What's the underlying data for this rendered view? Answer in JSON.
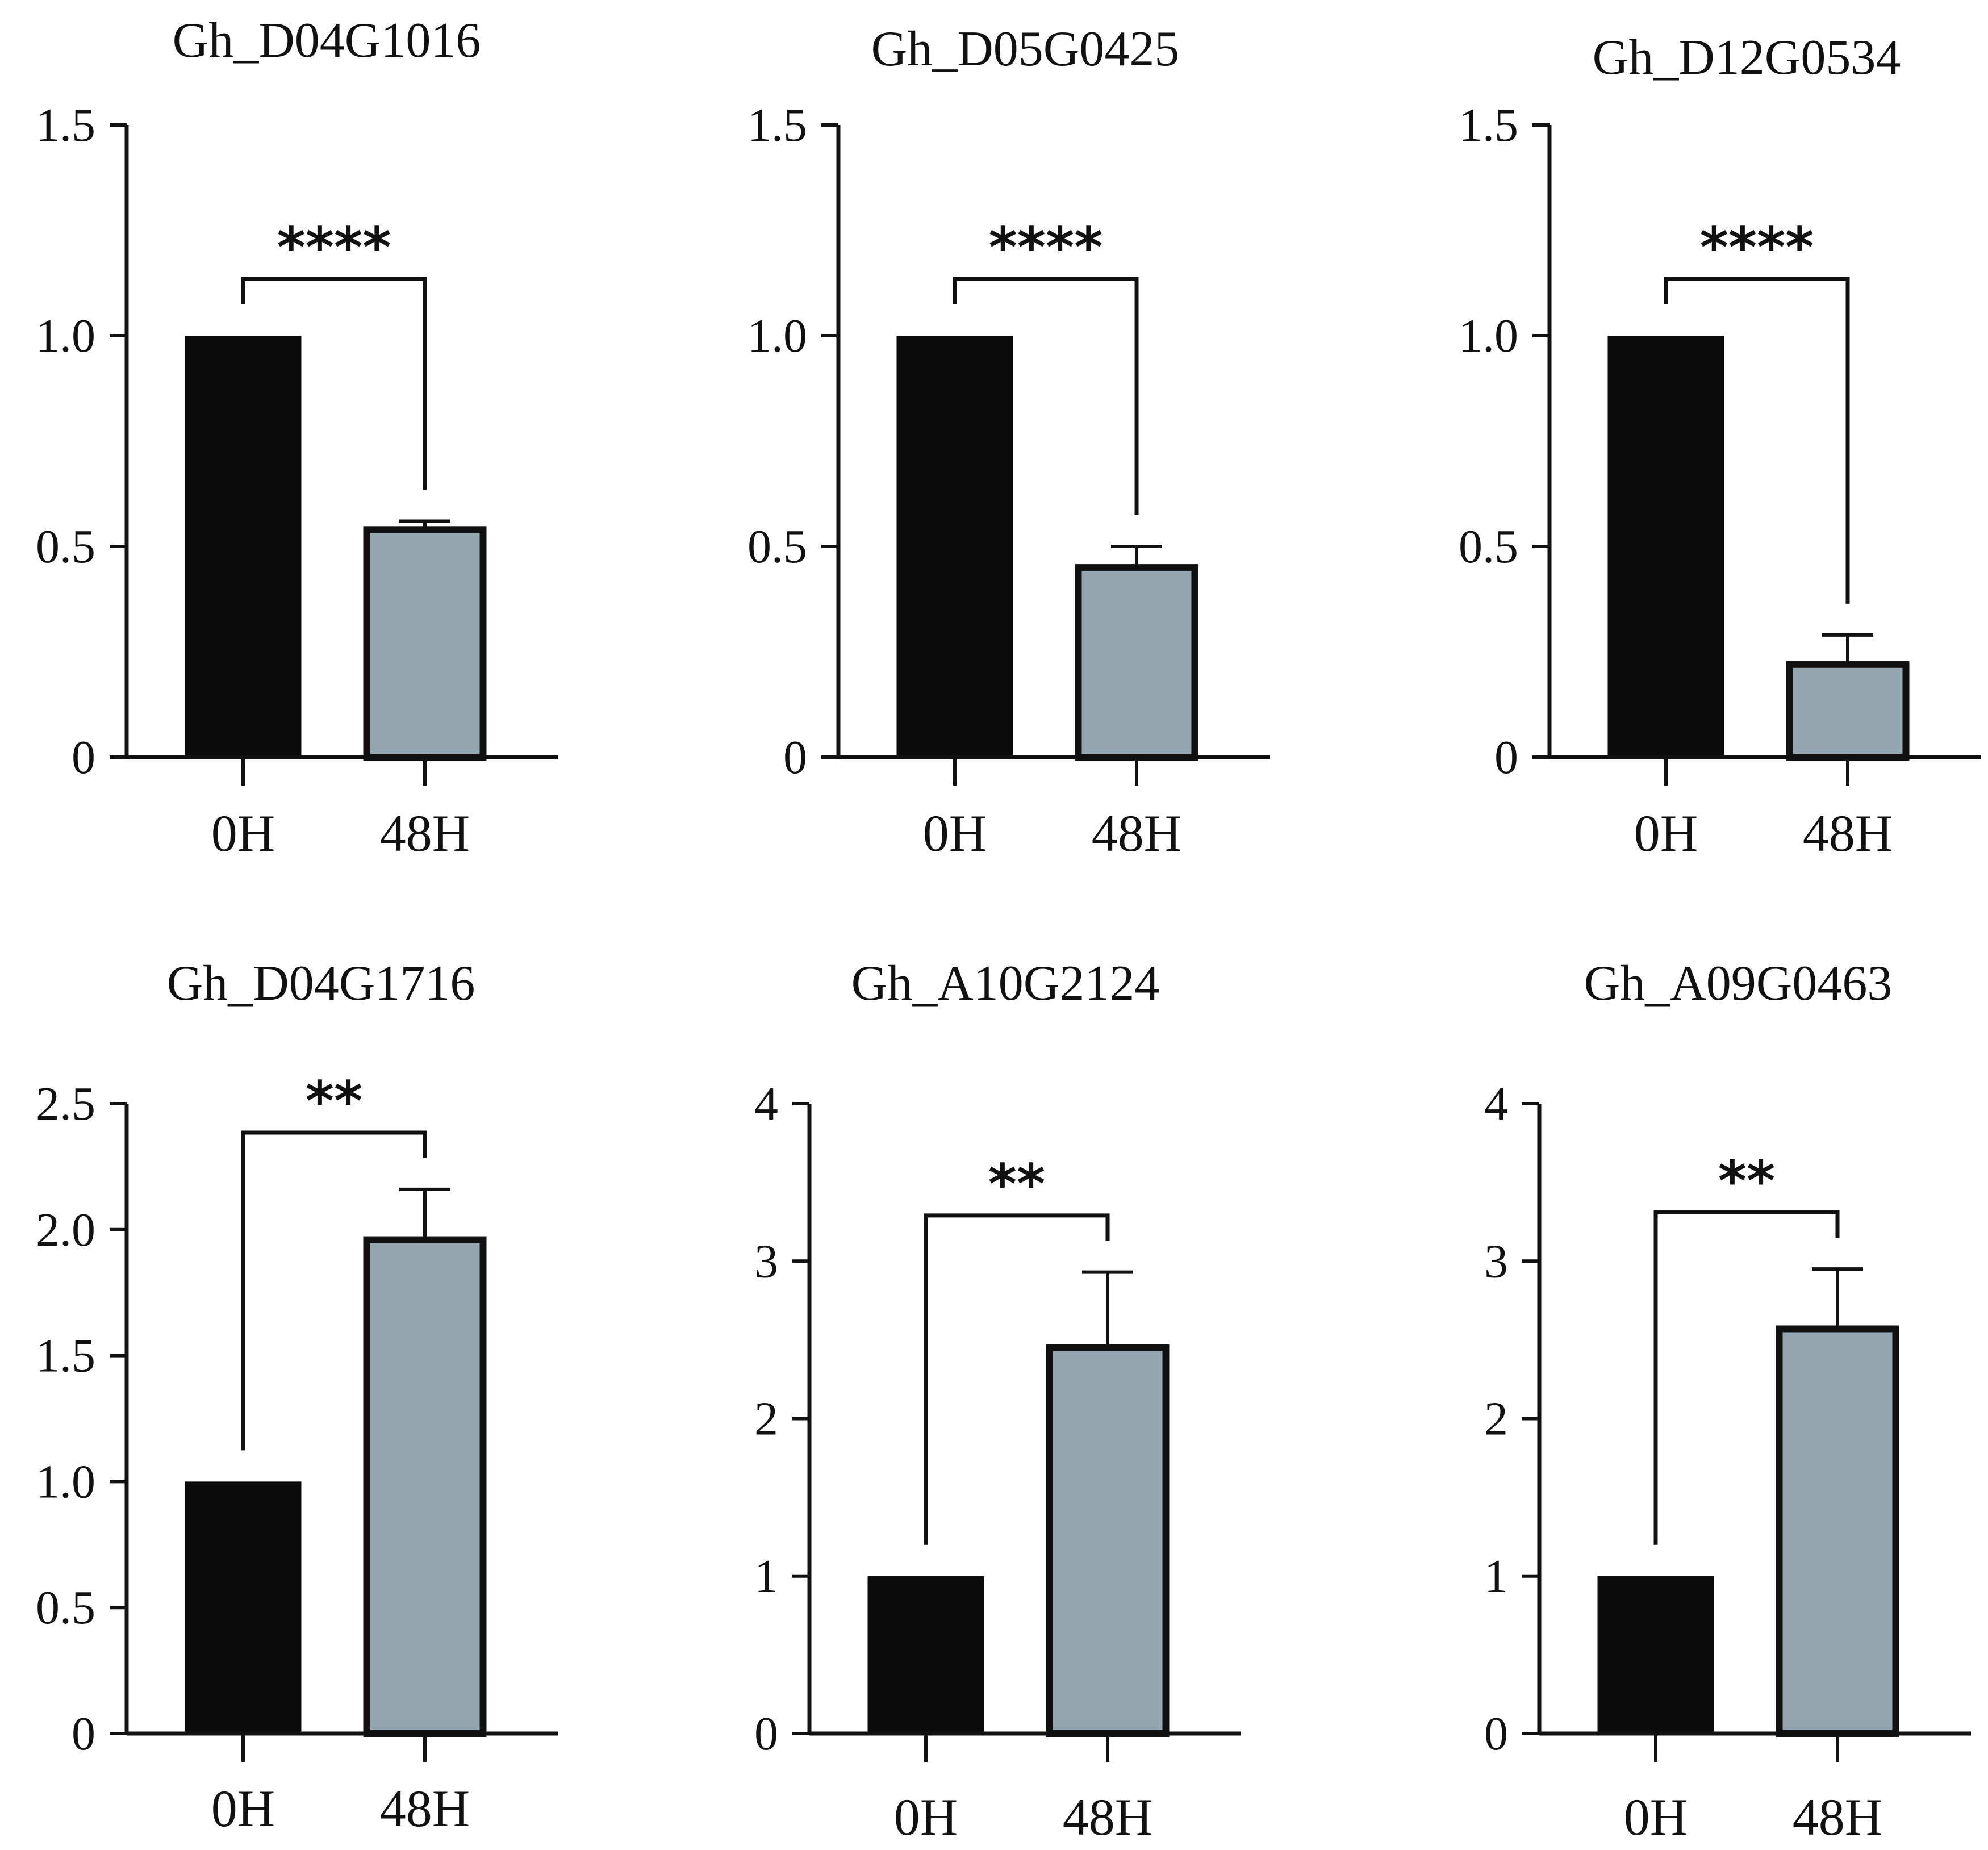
{
  "figure": {
    "background": "#ffffff"
  },
  "colors": {
    "bar_0h": "#0b0b0b",
    "bar_48h": "#94a7b1",
    "stroke": "#111111"
  },
  "chart_data": [
    {
      "type": "bar",
      "title": "Gh_D04G1016",
      "categories": [
        "0H",
        "48H"
      ],
      "values": [
        1.0,
        0.54
      ],
      "errors": [
        0,
        0.02
      ],
      "ylim": [
        0,
        1.5
      ],
      "yticks": [
        0,
        0.5,
        1.0,
        1.5
      ],
      "ytick_labels": [
        "0",
        "0.5",
        "1.0",
        "1.5"
      ],
      "significance": "****",
      "xlabel": "",
      "ylabel": ""
    },
    {
      "type": "bar",
      "title": "Gh_D05G0425",
      "categories": [
        "0H",
        "48H"
      ],
      "values": [
        1.0,
        0.45
      ],
      "errors": [
        0,
        0.05
      ],
      "ylim": [
        0,
        1.5
      ],
      "yticks": [
        0,
        0.5,
        1.0,
        1.5
      ],
      "ytick_labels": [
        "0",
        "0.5",
        "1.0",
        "1.5"
      ],
      "significance": "****",
      "xlabel": "",
      "ylabel": ""
    },
    {
      "type": "bar",
      "title": "Gh_D12G0534",
      "categories": [
        "0H",
        "48H"
      ],
      "values": [
        1.0,
        0.22
      ],
      "errors": [
        0,
        0.07
      ],
      "ylim": [
        0,
        1.5
      ],
      "yticks": [
        0,
        0.5,
        1.0,
        1.5
      ],
      "ytick_labels": [
        "0",
        "0.5",
        "1.0",
        "1.5"
      ],
      "significance": "****",
      "xlabel": "",
      "ylabel": ""
    },
    {
      "type": "bar",
      "title": "Gh_D04G1716",
      "categories": [
        "0H",
        "48H"
      ],
      "values": [
        1.0,
        1.96
      ],
      "errors": [
        0,
        0.2
      ],
      "ylim": [
        0,
        2.5
      ],
      "yticks": [
        0,
        0.5,
        1.0,
        1.5,
        2.0,
        2.5
      ],
      "ytick_labels": [
        "0",
        "0.5",
        "1.0",
        "1.5",
        "2.0",
        "2.5"
      ],
      "significance": "**",
      "xlabel": "",
      "ylabel": ""
    },
    {
      "type": "bar",
      "title": "Gh_A10G2124",
      "categories": [
        "0H",
        "48H"
      ],
      "values": [
        1.0,
        2.45
      ],
      "errors": [
        0,
        0.48
      ],
      "ylim": [
        0,
        4
      ],
      "yticks": [
        0,
        1,
        2,
        3,
        4
      ],
      "ytick_labels": [
        "0",
        "1",
        "2",
        "3",
        "4"
      ],
      "significance": "**",
      "xlabel": "",
      "ylabel": ""
    },
    {
      "type": "bar",
      "title": "Gh_A09G0463",
      "categories": [
        "0H",
        "48H"
      ],
      "values": [
        1.0,
        2.57
      ],
      "errors": [
        0,
        0.38
      ],
      "ylim": [
        0,
        4
      ],
      "yticks": [
        0,
        1,
        2,
        3,
        4
      ],
      "ytick_labels": [
        "0",
        "1",
        "2",
        "3",
        "4"
      ],
      "significance": "**",
      "xlabel": "",
      "ylabel": ""
    }
  ]
}
